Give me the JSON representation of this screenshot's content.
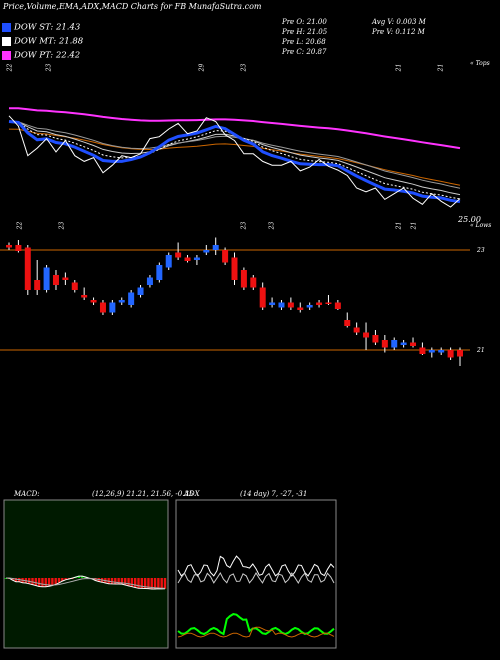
{
  "header": {
    "title": "Price,Volume,EMA,ADX,MACD Charts for FB MunafaSutra.com"
  },
  "legend": [
    {
      "label": "DOW ST: 21.43",
      "color": "#1f4fff"
    },
    {
      "label": "DOW MT: 21.88",
      "color": "#ffffff"
    },
    {
      "label": "DOW PT: 22.42",
      "color": "#ff33ff"
    }
  ],
  "stats": {
    "open": "Pre O: 21.00",
    "high": "Pre H: 21.05",
    "low": "Pre L: 20.68",
    "close": "Pre C: 20.87",
    "avg_vol": "Avg V: 0.003 M",
    "pre_vol": "Pre V: 0.112 M"
  },
  "top_panel": {
    "tops_label": "« Tops",
    "lows_label": "« Lows",
    "price_label": "25.00",
    "top_date_labels": [
      "22",
      "23",
      "29",
      "23",
      "21",
      "21"
    ],
    "low_date_labels": [
      "22",
      "23",
      "23",
      "23",
      "21",
      "21"
    ]
  },
  "candle_panel": {
    "right_labels": [
      "23",
      "21"
    ]
  },
  "macd": {
    "label": "MACD:",
    "params": "(12,26,9) 21.21, 21.56, -0.35"
  },
  "adx": {
    "label": "ADX",
    "params": "(14 day) 7, -27, -31"
  },
  "colors": {
    "up": "#2266ff",
    "down": "#ee1111",
    "dow_st": "#1f4fff",
    "dow_mt": "#ffffff",
    "dow_pt": "#ff33ff",
    "ema_orange": "#cc6600",
    "level_line": "#cc6600",
    "macd_green": "#00cc00",
    "adx_green": "#00ff00"
  },
  "chart_data": [
    {
      "type": "candlestick",
      "title": "",
      "price_levels": [
        23,
        21
      ],
      "candles": [
        {
          "o": 23.1,
          "h": 23.15,
          "l": 23.0,
          "c": 23.05
        },
        {
          "o": 23.1,
          "h": 23.2,
          "l": 22.95,
          "c": 22.98
        },
        {
          "o": 23.05,
          "h": 23.1,
          "l": 22.1,
          "c": 22.2
        },
        {
          "o": 22.4,
          "h": 22.8,
          "l": 22.1,
          "c": 22.2
        },
        {
          "o": 22.2,
          "h": 22.7,
          "l": 22.15,
          "c": 22.65
        },
        {
          "o": 22.5,
          "h": 22.6,
          "l": 22.2,
          "c": 22.3
        },
        {
          "o": 22.45,
          "h": 22.55,
          "l": 22.3,
          "c": 22.4
        },
        {
          "o": 22.35,
          "h": 22.4,
          "l": 22.15,
          "c": 22.2
        },
        {
          "o": 22.1,
          "h": 22.25,
          "l": 22.0,
          "c": 22.05
        },
        {
          "o": 22.0,
          "h": 22.05,
          "l": 21.9,
          "c": 21.95
        },
        {
          "o": 21.95,
          "h": 22.0,
          "l": 21.7,
          "c": 21.75
        },
        {
          "o": 21.75,
          "h": 22.0,
          "l": 21.7,
          "c": 21.95
        },
        {
          "o": 21.95,
          "h": 22.05,
          "l": 21.9,
          "c": 22.0
        },
        {
          "o": 21.9,
          "h": 22.2,
          "l": 21.85,
          "c": 22.15
        },
        {
          "o": 22.1,
          "h": 22.3,
          "l": 22.05,
          "c": 22.25
        },
        {
          "o": 22.3,
          "h": 22.5,
          "l": 22.25,
          "c": 22.45
        },
        {
          "o": 22.4,
          "h": 22.75,
          "l": 22.35,
          "c": 22.7
        },
        {
          "o": 22.65,
          "h": 22.95,
          "l": 22.6,
          "c": 22.9
        },
        {
          "o": 22.95,
          "h": 23.15,
          "l": 22.8,
          "c": 22.85
        },
        {
          "o": 22.85,
          "h": 22.9,
          "l": 22.75,
          "c": 22.78
        },
        {
          "o": 22.8,
          "h": 22.9,
          "l": 22.7,
          "c": 22.85
        },
        {
          "o": 22.95,
          "h": 23.1,
          "l": 22.9,
          "c": 23.0
        },
        {
          "o": 23.0,
          "h": 23.25,
          "l": 22.9,
          "c": 23.1
        },
        {
          "o": 23.0,
          "h": 23.05,
          "l": 22.7,
          "c": 22.75
        },
        {
          "o": 22.85,
          "h": 22.95,
          "l": 22.3,
          "c": 22.4
        },
        {
          "o": 22.6,
          "h": 22.65,
          "l": 22.2,
          "c": 22.25
        },
        {
          "o": 22.45,
          "h": 22.5,
          "l": 22.2,
          "c": 22.25
        },
        {
          "o": 22.25,
          "h": 22.35,
          "l": 21.8,
          "c": 21.85
        },
        {
          "o": 21.9,
          "h": 22.05,
          "l": 21.85,
          "c": 21.95
        },
        {
          "o": 21.85,
          "h": 22.0,
          "l": 21.8,
          "c": 21.95
        },
        {
          "o": 21.95,
          "h": 22.05,
          "l": 21.8,
          "c": 21.85
        },
        {
          "o": 21.85,
          "h": 21.95,
          "l": 21.75,
          "c": 21.8
        },
        {
          "o": 21.85,
          "h": 21.95,
          "l": 21.8,
          "c": 21.9
        },
        {
          "o": 21.95,
          "h": 22.0,
          "l": 21.85,
          "c": 21.9
        },
        {
          "o": 21.95,
          "h": 22.1,
          "l": 21.9,
          "c": 21.92
        },
        {
          "o": 21.95,
          "h": 22.0,
          "l": 21.8,
          "c": 21.82
        },
        {
          "o": 21.6,
          "h": 21.75,
          "l": 21.45,
          "c": 21.48
        },
        {
          "o": 21.45,
          "h": 21.55,
          "l": 21.3,
          "c": 21.35
        },
        {
          "o": 21.35,
          "h": 21.55,
          "l": 21.0,
          "c": 21.25
        },
        {
          "o": 21.3,
          "h": 21.4,
          "l": 21.1,
          "c": 21.15
        },
        {
          "o": 21.2,
          "h": 21.3,
          "l": 20.95,
          "c": 21.05
        },
        {
          "o": 21.05,
          "h": 21.25,
          "l": 21.0,
          "c": 21.2
        },
        {
          "o": 21.1,
          "h": 21.2,
          "l": 21.05,
          "c": 21.15
        },
        {
          "o": 21.15,
          "h": 21.25,
          "l": 21.05,
          "c": 21.08
        },
        {
          "o": 21.05,
          "h": 21.15,
          "l": 20.9,
          "c": 20.92
        },
        {
          "o": 20.95,
          "h": 21.05,
          "l": 20.85,
          "c": 21.0
        },
        {
          "o": 20.95,
          "h": 21.05,
          "l": 20.9,
          "c": 21.0
        },
        {
          "o": 21.0,
          "h": 21.05,
          "l": 20.8,
          "c": 20.85
        },
        {
          "o": 21.0,
          "h": 21.05,
          "l": 20.68,
          "c": 20.87
        }
      ]
    }
  ]
}
